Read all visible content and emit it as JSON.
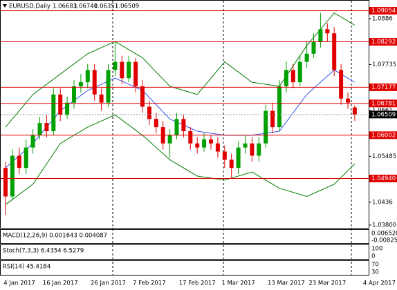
{
  "chart_data": {
    "type": "candlestick",
    "title": "EURUSD,Daily",
    "header_values": [
      "1.06683",
      "1.06740",
      "1.06351",
      "1.06509"
    ],
    "dates": [
      null,
      null,
      "4 Jan 2017",
      null,
      null,
      null,
      null,
      null,
      "16 Jan 2017",
      null,
      null,
      null,
      null,
      null,
      null,
      "26 Jan 2017",
      null,
      null,
      null,
      null,
      null,
      "7 Feb 2017",
      null,
      null,
      null,
      null,
      null,
      null,
      "17 Feb 2017",
      null,
      null,
      null,
      null,
      null,
      "1 Mar 2017",
      null,
      null,
      null,
      null,
      null,
      null,
      "13 Mar 2017",
      null,
      null,
      null,
      null,
      null,
      "23 Mar 2017",
      null,
      null,
      null,
      "4 Apr 2017"
    ],
    "open": [
      1.052,
      1.045,
      1.055,
      1.052,
      1.057,
      1.06,
      1.063,
      1.061,
      1.07,
      1.065,
      1.068,
      1.072,
      1.073,
      1.076,
      1.07,
      1.068,
      1.076,
      1.078,
      1.074,
      1.078,
      1.072,
      1.067,
      1.064,
      1.062,
      1.058,
      1.06,
      1.064,
      1.061,
      1.058,
      1.057,
      1.059,
      1.058,
      1.056,
      1.054,
      1.052,
      1.057,
      1.058,
      1.055,
      1.058,
      1.066,
      1.062,
      1.072,
      1.076,
      1.073,
      1.078,
      1.08,
      1.083,
      1.086,
      1.085,
      1.076,
      1.069,
      1.06683
    ],
    "high": [
      1.0535,
      1.0565,
      1.057,
      1.059,
      1.0615,
      1.0645,
      1.065,
      1.0715,
      1.0715,
      1.0695,
      1.0735,
      1.075,
      1.0775,
      1.0775,
      1.0715,
      1.0775,
      1.083,
      1.0795,
      1.0795,
      1.079,
      1.0735,
      1.0685,
      1.0655,
      1.0635,
      1.0615,
      1.0655,
      1.065,
      1.062,
      1.0595,
      1.0605,
      1.06,
      1.0595,
      1.0575,
      1.0555,
      1.0585,
      1.06,
      1.0595,
      1.0595,
      1.0675,
      1.068,
      1.0735,
      1.078,
      1.0775,
      1.0795,
      1.083,
      1.085,
      1.09,
      1.0875,
      1.0865,
      1.0775,
      1.0705,
      1.0674
    ],
    "low": [
      1.0405,
      1.044,
      1.0505,
      1.0505,
      1.0555,
      1.059,
      1.0595,
      1.06,
      1.0635,
      1.064,
      1.0665,
      1.0705,
      1.0715,
      1.0685,
      1.066,
      1.067,
      1.0745,
      1.0725,
      1.073,
      1.0705,
      1.0655,
      1.0625,
      1.0605,
      1.0565,
      1.0545,
      1.059,
      1.0595,
      1.0565,
      1.0555,
      1.056,
      1.0565,
      1.0545,
      1.052,
      1.0495,
      1.0505,
      1.0555,
      1.0535,
      1.0535,
      1.057,
      1.0605,
      1.061,
      1.0705,
      1.0715,
      1.072,
      1.0765,
      1.079,
      1.0815,
      1.083,
      1.0745,
      1.0675,
      1.0665,
      1.06351
    ],
    "close": [
      1.045,
      1.055,
      1.052,
      1.057,
      1.06,
      1.063,
      1.061,
      1.07,
      1.065,
      1.068,
      1.072,
      1.073,
      1.076,
      1.07,
      1.068,
      1.076,
      1.078,
      1.074,
      1.078,
      1.072,
      1.067,
      1.064,
      1.062,
      1.058,
      1.06,
      1.064,
      1.061,
      1.058,
      1.057,
      1.059,
      1.058,
      1.056,
      1.054,
      1.052,
      1.057,
      1.058,
      1.055,
      1.058,
      1.066,
      1.062,
      1.072,
      1.076,
      1.073,
      1.078,
      1.08,
      1.083,
      1.086,
      1.085,
      1.076,
      1.069,
      1.068,
      1.06509
    ],
    "up_color": "#00a000",
    "down_color": "#e00000",
    "bands": [
      {
        "color": "#007a00",
        "x": [
          0,
          4,
          8,
          12,
          16,
          20,
          24,
          28,
          32,
          36,
          40,
          44,
          48,
          51
        ],
        "values": [
          1.062,
          1.07,
          1.075,
          1.08,
          1.083,
          1.079,
          1.072,
          1.07,
          1.078,
          1.073,
          1.072,
          1.082,
          1.09,
          1.087
        ]
      },
      {
        "color": "#3355ee",
        "x": [
          0,
          4,
          8,
          12,
          16,
          20,
          24,
          28,
          32,
          36,
          40,
          44,
          48,
          51
        ],
        "values": [
          1.052,
          1.058,
          1.066,
          1.071,
          1.074,
          1.071,
          1.064,
          1.061,
          1.06,
          1.06,
          1.061,
          1.07,
          1.076,
          1.073
        ]
      },
      {
        "color": "#007a00",
        "x": [
          0,
          4,
          8,
          12,
          16,
          20,
          24,
          28,
          32,
          36,
          40,
          44,
          48,
          51
        ],
        "values": [
          1.043,
          1.048,
          1.058,
          1.062,
          1.065,
          1.06,
          1.054,
          1.05,
          1.049,
          1.051,
          1.047,
          1.045,
          1.048,
          1.053
        ]
      }
    ],
    "ylim": [
      1.0373,
      1.093
    ],
    "yticks": [
      {
        "value": 1.038,
        "label": "1.03800"
      },
      1.0436,
      1.05485,
      1.0661,
      1.07735,
      1.0886
    ],
    "levels": [
      1.09054,
      1.08292,
      1.07177,
      1.06781,
      1.06002,
      {
        "value": 1.0494,
        "label": "1.04940"
      }
    ],
    "level_color": "#e00000",
    "last_price": 1.06509,
    "panels": [
      {
        "label": "MACD(12,26,9) 0.001643 0.004087",
        "ticks": [
          "0.006520",
          "-0.00825"
        ]
      },
      {
        "label": "Stoch(7,3,3) 6.4354 6.5279",
        "ticks": [
          "100",
          "0"
        ]
      },
      {
        "label": "RSI(14) 45.4184",
        "ticks": [
          "70",
          "30"
        ]
      }
    ]
  }
}
